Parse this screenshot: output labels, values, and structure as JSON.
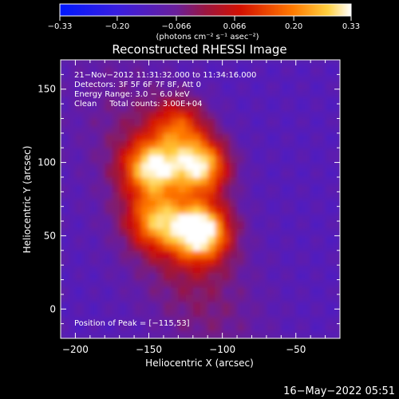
{
  "chart_data": {
    "type": "heatmap",
    "title": "Reconstructed RHESSI Image",
    "xlabel": "Heliocentric X (arcsec)",
    "ylabel": "Heliocentric Y (arcsec)",
    "xlim": [
      -210,
      -20
    ],
    "ylim": [
      -20,
      170
    ],
    "xticks": [
      -200,
      -150,
      -100,
      -50
    ],
    "yticks": [
      0,
      50,
      100,
      150
    ],
    "xtick_labels": [
      "−200",
      "−150",
      "−100",
      "−50"
    ],
    "ytick_labels": [
      "0",
      "50",
      "100",
      "150"
    ],
    "colorbar": {
      "min": -0.33,
      "max": 0.33,
      "ticks": [
        -0.33,
        -0.2,
        -0.066,
        0.066,
        0.2,
        0.33
      ],
      "tick_labels": [
        "−0.33",
        "−0.20",
        "−0.066",
        "0.066",
        "0.20",
        "0.33"
      ],
      "units_label": "(photons cm⁻² s⁻¹ asec⁻²)",
      "colors": [
        "#0018ff",
        "#5a1fb5",
        "#8a1a50",
        "#d21000",
        "#ff8a00",
        "#ffffff"
      ]
    },
    "info_lines": [
      "21−Nov−2012 11:31:32.000 to 11:34:16.000",
      "Detectors: 3F 5F 6F 7F 8F, Att 0",
      "Energy Range: 3.0 − 6.0 keV",
      "Clean     Total counts: 3.00E+04"
    ],
    "peak_label": "Position of Peak = [−115,53]",
    "peak": {
      "x": -115,
      "y": 53
    },
    "sources": [
      {
        "x": -115,
        "y": 53,
        "peak": 0.33
      },
      {
        "x": -115,
        "y": 98,
        "peak": 0.26
      },
      {
        "x": -148,
        "y": 97,
        "peak": 0.22
      },
      {
        "x": -145,
        "y": 60,
        "peak": 0.14
      },
      {
        "x": -130,
        "y": 125,
        "peak": 0.1
      }
    ],
    "grid": false
  },
  "footer_date": "16−May−2022 05:51"
}
